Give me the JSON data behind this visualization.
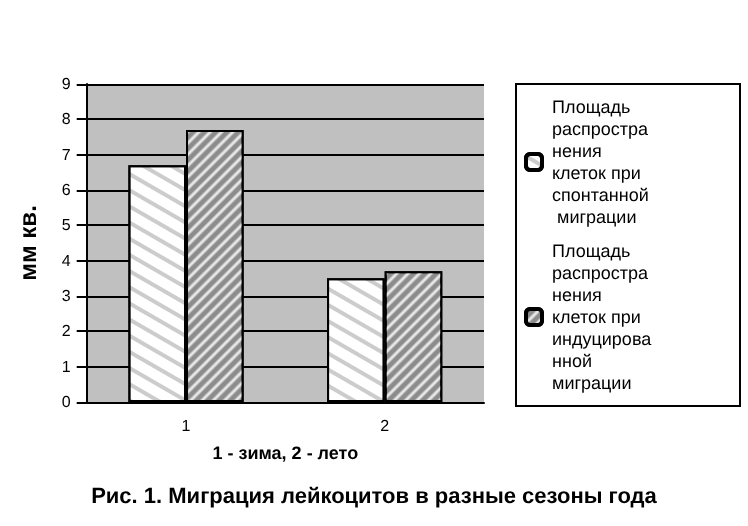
{
  "chart_data": {
    "type": "bar",
    "title": "Рис. 1. Миграция лейкоцитов в разные сезоны года",
    "xlabel": "1 - зима, 2 - лето",
    "ylabel": "мм кв.",
    "categories": [
      "1",
      "2"
    ],
    "series": [
      {
        "name": "Площадь распространения клеток при спонтанной миграции",
        "color": "#ffffff",
        "values": [
          6.7,
          3.5
        ]
      },
      {
        "name": "Площадь распространения клеток при индуцированной миграции",
        "color": "#8c8c8c",
        "values": [
          7.7,
          3.7
        ]
      }
    ],
    "ylim": [
      0,
      9
    ],
    "yticks": [
      0,
      1,
      2,
      3,
      4,
      5,
      6,
      7,
      8,
      9
    ],
    "grid": "y",
    "legend": "right"
  }
}
